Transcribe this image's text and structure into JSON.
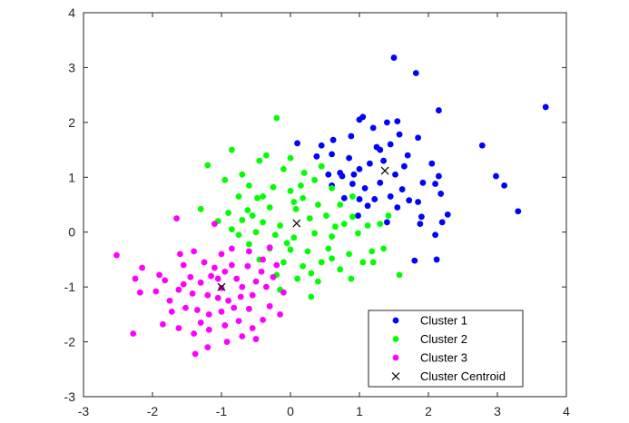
{
  "chart_data": {
    "type": "scatter",
    "title": "",
    "xlabel": "",
    "ylabel": "",
    "xlim": [
      -3,
      4
    ],
    "ylim": [
      -3,
      4
    ],
    "xticks": [
      -3,
      -2,
      -1,
      0,
      1,
      2,
      3,
      4
    ],
    "yticks": [
      -3,
      -2,
      -1,
      0,
      1,
      2,
      3,
      4
    ],
    "grid": false,
    "legend_position": "bottom-right",
    "series": [
      {
        "name": "Cluster 1",
        "color": "#0000ff",
        "marker": "dot",
        "points": [
          [
            1.5,
            3.18
          ],
          [
            1.82,
            2.9
          ],
          [
            3.7,
            2.28
          ],
          [
            2.15,
            2.22
          ],
          [
            1.85,
            1.72
          ],
          [
            2.78,
            1.58
          ],
          [
            1.4,
            2.0
          ],
          [
            1.55,
            2.02
          ],
          [
            1.58,
            1.78
          ],
          [
            1.05,
            2.1
          ],
          [
            1.0,
            2.05
          ],
          [
            1.2,
            1.9
          ],
          [
            0.88,
            1.75
          ],
          [
            1.25,
            1.55
          ],
          [
            1.45,
            1.6
          ],
          [
            0.45,
            1.58
          ],
          [
            0.1,
            1.62
          ],
          [
            1.3,
            1.5
          ],
          [
            1.7,
            1.4
          ],
          [
            1.35,
            1.3
          ],
          [
            1.15,
            1.25
          ],
          [
            0.85,
            1.35
          ],
          [
            0.6,
            1.42
          ],
          [
            0.38,
            1.38
          ],
          [
            2.05,
            1.25
          ],
          [
            1.0,
            1.15
          ],
          [
            1.65,
            1.2
          ],
          [
            0.72,
            1.08
          ],
          [
            0.92,
            1.05
          ],
          [
            1.52,
            1.05
          ],
          [
            2.15,
            1.02
          ],
          [
            2.98,
            1.02
          ],
          [
            2.1,
            0.88
          ],
          [
            1.92,
            0.9
          ],
          [
            0.9,
            0.88
          ],
          [
            0.6,
            0.85
          ],
          [
            1.62,
            0.78
          ],
          [
            2.18,
            0.7
          ],
          [
            1.45,
            0.65
          ],
          [
            3.1,
            0.85
          ],
          [
            1.22,
            0.6
          ],
          [
            1.0,
            0.6
          ],
          [
            0.78,
            0.62
          ],
          [
            1.12,
            0.48
          ],
          [
            1.55,
            0.45
          ],
          [
            0.98,
            0.3
          ],
          [
            1.9,
            0.28
          ],
          [
            2.28,
            0.32
          ],
          [
            1.88,
            0.15
          ],
          [
            2.2,
            0.18
          ],
          [
            1.4,
            0.18
          ],
          [
            2.1,
            -0.05
          ],
          [
            3.3,
            0.38
          ],
          [
            1.8,
            -0.52
          ],
          [
            1.85,
            0.55
          ],
          [
            2.12,
            -0.5
          ],
          [
            0.62,
            1.68
          ],
          [
            0.55,
            1.05
          ],
          [
            1.08,
            0.8
          ],
          [
            1.72,
            0.58
          ],
          [
            0.75,
            1.02
          ],
          [
            1.3,
            0.9
          ]
        ]
      },
      {
        "name": "Cluster 2",
        "color": "#00ff00",
        "marker": "dot",
        "points": [
          [
            -0.2,
            2.08
          ],
          [
            -0.85,
            1.5
          ],
          [
            -1.2,
            1.22
          ],
          [
            -0.35,
            1.4
          ],
          [
            -0.45,
            1.3
          ],
          [
            0.0,
            1.35
          ],
          [
            -0.1,
            1.15
          ],
          [
            0.2,
            1.08
          ],
          [
            -0.7,
            1.05
          ],
          [
            -0.95,
            0.95
          ],
          [
            -0.6,
            0.85
          ],
          [
            -0.25,
            0.82
          ],
          [
            0.35,
            0.95
          ],
          [
            0.6,
            0.8
          ],
          [
            0.0,
            0.75
          ],
          [
            -0.75,
            0.65
          ],
          [
            -0.48,
            0.62
          ],
          [
            0.18,
            0.62
          ],
          [
            -1.3,
            0.42
          ],
          [
            -0.9,
            0.35
          ],
          [
            -0.62,
            0.4
          ],
          [
            -0.3,
            0.45
          ],
          [
            0.08,
            0.42
          ],
          [
            0.4,
            0.5
          ],
          [
            0.72,
            0.5
          ],
          [
            0.9,
            0.28
          ],
          [
            -1.05,
            0.2
          ],
          [
            -0.7,
            0.22
          ],
          [
            -0.4,
            0.18
          ],
          [
            -0.15,
            0.12
          ],
          [
            0.28,
            0.25
          ],
          [
            0.52,
            0.3
          ],
          [
            0.78,
            0.15
          ],
          [
            1.12,
            0.12
          ],
          [
            1.3,
            0.15
          ],
          [
            1.42,
            0.3
          ],
          [
            -0.85,
            0.05
          ],
          [
            -0.5,
            0.0
          ],
          [
            -0.22,
            -0.05
          ],
          [
            0.05,
            -0.1
          ],
          [
            0.35,
            -0.02
          ],
          [
            0.6,
            -0.08
          ],
          [
            0.98,
            -0.02
          ],
          [
            -0.6,
            -0.22
          ],
          [
            -0.3,
            -0.3
          ],
          [
            0.0,
            -0.32
          ],
          [
            0.25,
            -0.35
          ],
          [
            0.55,
            -0.3
          ],
          [
            0.85,
            -0.4
          ],
          [
            1.18,
            -0.35
          ],
          [
            1.35,
            -0.3
          ],
          [
            -0.45,
            -0.5
          ],
          [
            -0.1,
            -0.55
          ],
          [
            0.18,
            -0.62
          ],
          [
            0.45,
            -0.55
          ],
          [
            0.72,
            -0.68
          ],
          [
            1.05,
            -0.55
          ],
          [
            1.58,
            -0.78
          ],
          [
            -0.2,
            -0.78
          ],
          [
            0.1,
            -0.85
          ],
          [
            0.4,
            -0.9
          ],
          [
            0.88,
            -0.85
          ],
          [
            -0.15,
            -1.05
          ],
          [
            0.3,
            -1.18
          ],
          [
            -0.4,
            0.65
          ],
          [
            0.15,
            0.85
          ],
          [
            0.65,
            0.1
          ],
          [
            -0.55,
            0.3
          ],
          [
            0.05,
            0.55
          ],
          [
            1.2,
            -0.55
          ],
          [
            0.9,
            0.65
          ],
          [
            -0.05,
            -0.2
          ],
          [
            0.45,
            1.2
          ],
          [
            0.3,
            -0.75
          ],
          [
            -0.75,
            -0.05
          ],
          [
            0.6,
            -0.48
          ]
        ]
      },
      {
        "name": "Cluster 3",
        "color": "#ff00ff",
        "marker": "dot",
        "points": [
          [
            -1.65,
            0.25
          ],
          [
            -1.1,
            0.15
          ],
          [
            -2.52,
            -0.42
          ],
          [
            -2.15,
            -0.65
          ],
          [
            -2.25,
            -0.85
          ],
          [
            -1.82,
            -0.88
          ],
          [
            -2.18,
            -1.1
          ],
          [
            -1.95,
            -1.08
          ],
          [
            -1.75,
            -1.25
          ],
          [
            -1.4,
            -0.35
          ],
          [
            -1.55,
            -0.6
          ],
          [
            -1.25,
            -0.55
          ],
          [
            -1.1,
            -0.65
          ],
          [
            -1.45,
            -0.82
          ],
          [
            -1.3,
            -0.92
          ],
          [
            -1.05,
            -0.85
          ],
          [
            -0.95,
            -0.72
          ],
          [
            -0.85,
            -0.6
          ],
          [
            -0.78,
            -0.85
          ],
          [
            -0.7,
            -1.0
          ],
          [
            -1.62,
            -1.05
          ],
          [
            -1.42,
            -1.12
          ],
          [
            -1.2,
            -1.15
          ],
          [
            -1.05,
            -1.2
          ],
          [
            -0.9,
            -1.25
          ],
          [
            -0.72,
            -1.18
          ],
          [
            -0.55,
            -1.15
          ],
          [
            -0.35,
            -1.0
          ],
          [
            -0.25,
            -0.82
          ],
          [
            -0.42,
            -0.72
          ],
          [
            -0.62,
            -0.62
          ],
          [
            -0.4,
            -0.5
          ],
          [
            -0.2,
            -0.6
          ],
          [
            -1.72,
            -1.45
          ],
          [
            -1.52,
            -1.38
          ],
          [
            -1.35,
            -1.42
          ],
          [
            -1.18,
            -1.5
          ],
          [
            -1.0,
            -1.45
          ],
          [
            -0.82,
            -1.38
          ],
          [
            -0.6,
            -1.4
          ],
          [
            -0.3,
            -1.35
          ],
          [
            -0.1,
            -1.1
          ],
          [
            -1.62,
            -1.75
          ],
          [
            -1.4,
            -1.85
          ],
          [
            -1.18,
            -1.78
          ],
          [
            -0.95,
            -1.7
          ],
          [
            -0.75,
            -1.62
          ],
          [
            -0.55,
            -1.75
          ],
          [
            -0.92,
            -2.0
          ],
          [
            -1.2,
            -2.1
          ],
          [
            -1.38,
            -2.22
          ],
          [
            -2.28,
            -1.85
          ],
          [
            -1.85,
            -1.68
          ],
          [
            -0.5,
            -1.95
          ],
          [
            -0.85,
            -0.3
          ],
          [
            -0.6,
            -0.35
          ],
          [
            -1.0,
            -0.4
          ],
          [
            -1.6,
            -0.4
          ],
          [
            -0.3,
            -0.28
          ],
          [
            -1.15,
            -0.8
          ],
          [
            -0.5,
            -0.9
          ],
          [
            -1.3,
            -1.65
          ],
          [
            -0.7,
            -1.9
          ],
          [
            -1.0,
            -1.02
          ],
          [
            -0.15,
            -1.5
          ],
          [
            -0.4,
            -1.6
          ],
          [
            -1.9,
            -0.78
          ],
          [
            -1.55,
            -0.95
          ]
        ]
      },
      {
        "name": "Cluster Centroid",
        "color": "#000000",
        "marker": "x",
        "points": [
          [
            1.37,
            1.12
          ],
          [
            0.09,
            0.16
          ],
          [
            -1.0,
            -1.0
          ]
        ]
      }
    ]
  }
}
